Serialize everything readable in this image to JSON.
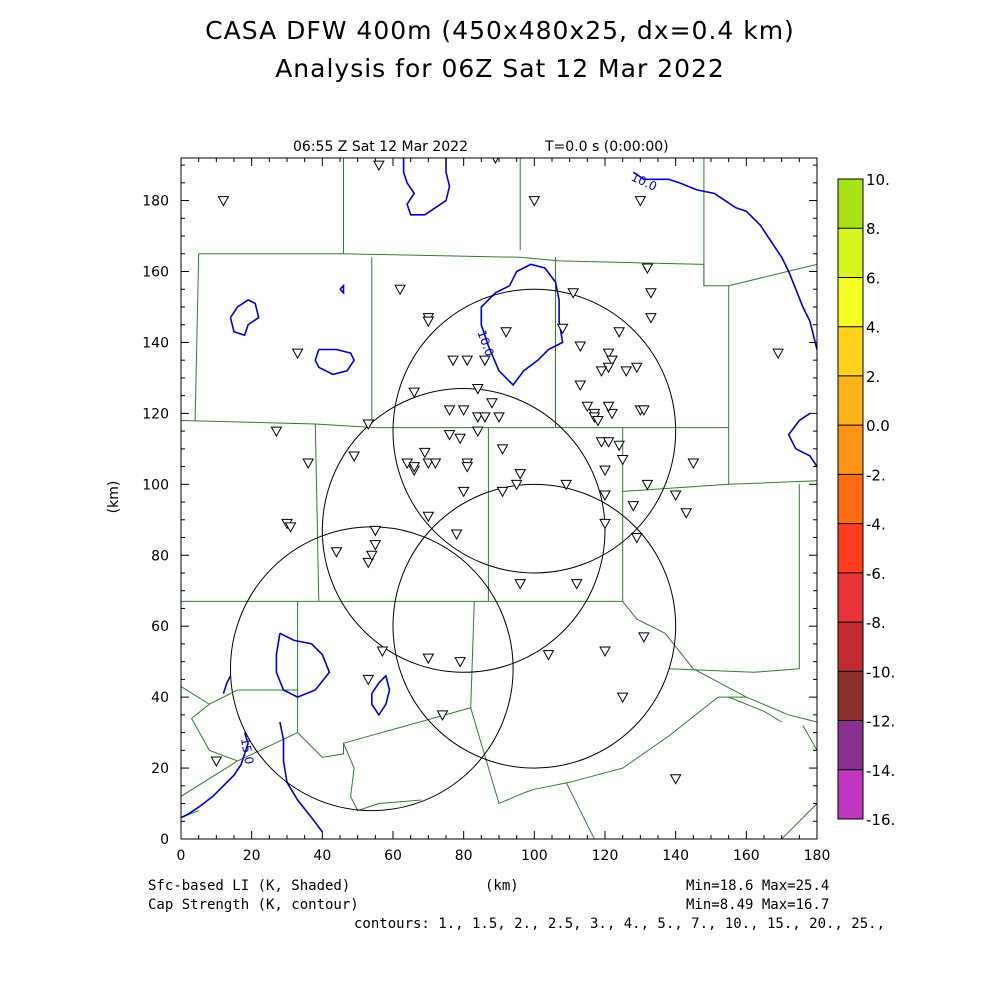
{
  "header": {
    "title_line1": "CASA DFW 400m (450x480x25, dx=0.4 km)",
    "title_line2": "Analysis for 06Z Sat 12 Mar 2022"
  },
  "plot": {
    "valid_time": "06:55 Z Sat 12 Mar 2022",
    "forecast_time": "T=0.0 s (0:00:00)",
    "x_axis_label": "(km)",
    "y_axis_label": "(km)",
    "x_ticks": [
      "0",
      "20",
      "40",
      "60",
      "80",
      "100",
      "120",
      "140",
      "160",
      "180"
    ],
    "y_ticks": [
      "0",
      "20",
      "40",
      "60",
      "80",
      "100",
      "120",
      "140",
      "160",
      "180"
    ],
    "xlim": [
      0,
      180
    ],
    "ylim": [
      0,
      192
    ],
    "contour_label_value": "10.0",
    "contour_label_value2": "15.0",
    "contour_color": "#0000cc",
    "boundary_color": "#2e7d2e"
  },
  "colorbar": {
    "labels": [
      "10.",
      "8.",
      "6.",
      "4.",
      "2.",
      "0.0",
      "-2.",
      "-4.",
      "-6.",
      "-8.",
      "-10.",
      "-12.",
      "-14.",
      "-16."
    ],
    "colors": [
      "#a8e31a",
      "#d6f51e",
      "#f5ff24",
      "#ffd21e",
      "#ffb21a",
      "#ff9416",
      "#ff6a14",
      "#ff3c1e",
      "#e8343a",
      "#c02c30",
      "#8a2f2a",
      "#8a3090",
      "#c038c0",
      "#e040e8"
    ]
  },
  "footer": {
    "shaded_field": "Sfc-based LI (K, Shaded)",
    "contour_field": "Cap Strength (K, contour)",
    "x_unit": "(km)",
    "shaded_minmax": "Min=18.6 Max=25.4",
    "contour_minmax": "Min=8.49 Max=16.7",
    "contours_list": "contours: 1., 1.5, 2., 2.5, 3., 4., 5., 7., 10., 15., 20., 25.,"
  },
  "map_data": {
    "radars": [
      {
        "x_km": 100,
        "y_km": 115,
        "range_km": 40
      },
      {
        "x_km": 80,
        "y_km": 87,
        "range_km": 40
      },
      {
        "x_km": 100,
        "y_km": 60,
        "range_km": 40
      },
      {
        "x_km": 54,
        "y_km": 48,
        "range_km": 40
      }
    ],
    "stations": [
      [
        12,
        180
      ],
      [
        56,
        190
      ],
      [
        89,
        192
      ],
      [
        100,
        180
      ],
      [
        130,
        180
      ],
      [
        62,
        155
      ],
      [
        70,
        147
      ],
      [
        70,
        146
      ],
      [
        92,
        143
      ],
      [
        108,
        144
      ],
      [
        113,
        139
      ],
      [
        121,
        137
      ],
      [
        124,
        143
      ],
      [
        132,
        161
      ],
      [
        133,
        154
      ],
      [
        133,
        147
      ],
      [
        122,
        135
      ],
      [
        121,
        133
      ],
      [
        119,
        132
      ],
      [
        126,
        132
      ],
      [
        129,
        133
      ],
      [
        111,
        154
      ],
      [
        33,
        137
      ],
      [
        66,
        126
      ],
      [
        77,
        135
      ],
      [
        81,
        135
      ],
      [
        86,
        135
      ],
      [
        84,
        127
      ],
      [
        76,
        121
      ],
      [
        80,
        121
      ],
      [
        88,
        123
      ],
      [
        84,
        119
      ],
      [
        86,
        119
      ],
      [
        90,
        119
      ],
      [
        84,
        115
      ],
      [
        113,
        128
      ],
      [
        115,
        122
      ],
      [
        117,
        120
      ],
      [
        117,
        119
      ],
      [
        118,
        118
      ],
      [
        122,
        120
      ],
      [
        121,
        122
      ],
      [
        130,
        121
      ],
      [
        131,
        121
      ],
      [
        53,
        117
      ],
      [
        27,
        115
      ],
      [
        36,
        106
      ],
      [
        49,
        108
      ],
      [
        64,
        106
      ],
      [
        66,
        104
      ],
      [
        66,
        105
      ],
      [
        69,
        109
      ],
      [
        70,
        106
      ],
      [
        72,
        106
      ],
      [
        76,
        114
      ],
      [
        79,
        113
      ],
      [
        81,
        106
      ],
      [
        81,
        105
      ],
      [
        91,
        110
      ],
      [
        96,
        103
      ],
      [
        95,
        100
      ],
      [
        91,
        98
      ],
      [
        80,
        98
      ],
      [
        109,
        100
      ],
      [
        119,
        112
      ],
      [
        121,
        112
      ],
      [
        120,
        104
      ],
      [
        124,
        111
      ],
      [
        125,
        107
      ],
      [
        132,
        100
      ],
      [
        120,
        97
      ],
      [
        128,
        94
      ],
      [
        140,
        97
      ],
      [
        143,
        92
      ],
      [
        145,
        106
      ],
      [
        30,
        89
      ],
      [
        31,
        88
      ],
      [
        44,
        81
      ],
      [
        53,
        78
      ],
      [
        54,
        80
      ],
      [
        55,
        83
      ],
      [
        55,
        87
      ],
      [
        70,
        91
      ],
      [
        78,
        86
      ],
      [
        120,
        89
      ],
      [
        129,
        85
      ],
      [
        96,
        72
      ],
      [
        112,
        72
      ],
      [
        57,
        53
      ],
      [
        70,
        51
      ],
      [
        79,
        50
      ],
      [
        53,
        45
      ],
      [
        74,
        35
      ],
      [
        104,
        52
      ],
      [
        120,
        53
      ],
      [
        131,
        57
      ],
      [
        125,
        40
      ],
      [
        10,
        22
      ],
      [
        140,
        17
      ],
      [
        169,
        137
      ]
    ],
    "cap_contours": [
      [
        [
          63,
          192
        ],
        [
          63,
          188
        ],
        [
          64,
          185
        ],
        [
          66,
          182
        ],
        [
          64,
          179
        ],
        [
          65,
          176
        ],
        [
          69,
          176
        ],
        [
          72,
          178
        ],
        [
          75,
          180
        ],
        [
          76,
          184
        ],
        [
          75,
          188
        ],
        [
          75,
          192
        ]
      ],
      [
        [
          128,
          188
        ],
        [
          131,
          186
        ],
        [
          135,
          186
        ],
        [
          138,
          186
        ],
        [
          141,
          185
        ],
        [
          146,
          183
        ],
        [
          151,
          182
        ],
        [
          154,
          180
        ],
        [
          157,
          178
        ],
        [
          160,
          177
        ],
        [
          164,
          173
        ],
        [
          166,
          170
        ],
        [
          168,
          167
        ],
        [
          170,
          164
        ],
        [
          172,
          160
        ],
        [
          174,
          155
        ],
        [
          176,
          150
        ],
        [
          178,
          146
        ],
        [
          180,
          138
        ]
      ],
      [
        [
          178,
          120
        ],
        [
          175,
          118
        ],
        [
          172,
          114
        ],
        [
          174,
          110
        ],
        [
          178,
          108
        ],
        [
          180,
          105
        ]
      ],
      [
        [
          93,
          156
        ],
        [
          95,
          160
        ],
        [
          99,
          162
        ],
        [
          103,
          161
        ],
        [
          106,
          157
        ],
        [
          107,
          152
        ],
        [
          107,
          146
        ],
        [
          108,
          140
        ],
        [
          104,
          138
        ],
        [
          101,
          135
        ],
        [
          97,
          132
        ],
        [
          94,
          128
        ],
        [
          90,
          132
        ],
        [
          87,
          139
        ],
        [
          85,
          145
        ],
        [
          85,
          150
        ],
        [
          89,
          154
        ],
        [
          93,
          156
        ]
      ],
      [
        [
          14,
          147
        ],
        [
          16,
          150
        ],
        [
          19,
          152
        ],
        [
          21,
          151
        ],
        [
          22,
          147
        ],
        [
          19,
          145
        ],
        [
          18,
          142
        ],
        [
          15,
          143
        ],
        [
          14,
          147
        ]
      ],
      [
        [
          39,
          138
        ],
        [
          44,
          138
        ],
        [
          48,
          137
        ],
        [
          49,
          135
        ],
        [
          47,
          132
        ],
        [
          43,
          131
        ],
        [
          39,
          133
        ],
        [
          38,
          135
        ],
        [
          39,
          138
        ]
      ],
      [
        [
          45,
          155
        ],
        [
          46,
          156
        ],
        [
          46,
          154
        ],
        [
          45,
          155
        ]
      ],
      [
        [
          28,
          58
        ],
        [
          32,
          56
        ],
        [
          37,
          55
        ],
        [
          40,
          52
        ],
        [
          42,
          47
        ],
        [
          38,
          42
        ],
        [
          33,
          40
        ],
        [
          29,
          42
        ],
        [
          27,
          47
        ],
        [
          27,
          52
        ],
        [
          28,
          58
        ]
      ],
      [
        [
          54,
          41
        ],
        [
          56,
          44
        ],
        [
          58,
          46
        ],
        [
          59,
          42
        ],
        [
          58,
          38
        ],
        [
          56,
          35
        ],
        [
          54,
          38
        ],
        [
          54,
          41
        ]
      ],
      [
        [
          12,
          41
        ],
        [
          13,
          44
        ],
        [
          14,
          46
        ]
      ],
      [
        [
          18,
          30
        ],
        [
          19,
          27
        ],
        [
          18,
          24
        ],
        [
          17,
          21
        ],
        [
          15,
          18
        ],
        [
          12,
          15
        ],
        [
          9,
          12
        ],
        [
          5,
          9
        ],
        [
          2,
          7
        ],
        [
          0,
          6
        ]
      ],
      [
        [
          28,
          33
        ],
        [
          29,
          28
        ],
        [
          29,
          22
        ],
        [
          30,
          16
        ],
        [
          33,
          11
        ],
        [
          37,
          6
        ],
        [
          40,
          2
        ]
      ]
    ],
    "county_lines": [
      [
        [
          46,
          192
        ],
        [
          46,
          165
        ]
      ],
      [
        [
          96,
          192
        ],
        [
          96,
          166
        ]
      ],
      [
        [
          148,
          192
        ],
        [
          148,
          156
        ]
      ],
      [
        [
          5,
          165
        ],
        [
          46,
          165
        ],
        [
          96,
          164
        ],
        [
          107,
          163
        ],
        [
          148,
          162
        ]
      ],
      [
        [
          5,
          165
        ],
        [
          4,
          118
        ]
      ],
      [
        [
          0,
          118
        ],
        [
          38,
          117
        ],
        [
          55,
          116
        ],
        [
          106,
          116
        ]
      ],
      [
        [
          54,
          164
        ],
        [
          54,
          117
        ]
      ],
      [
        [
          106,
          164
        ],
        [
          106,
          116
        ]
      ],
      [
        [
          148,
          162
        ],
        [
          148,
          156
        ],
        [
          155,
          156
        ],
        [
          180,
          162
        ]
      ],
      [
        [
          155,
          156
        ],
        [
          155,
          100
        ]
      ],
      [
        [
          106,
          116
        ],
        [
          125,
          116
        ],
        [
          155,
          116
        ]
      ],
      [
        [
          125,
          116
        ],
        [
          125,
          67
        ]
      ],
      [
        [
          38,
          117
        ],
        [
          39,
          67
        ]
      ],
      [
        [
          87,
          116
        ],
        [
          87,
          67
        ]
      ],
      [
        [
          125,
          98
        ],
        [
          155,
          100
        ],
        [
          180,
          101
        ]
      ],
      [
        [
          175,
          100
        ],
        [
          175,
          48
        ],
        [
          162,
          47
        ],
        [
          138,
          48
        ]
      ],
      [
        [
          0,
          67
        ],
        [
          39,
          67
        ],
        [
          87,
          67
        ],
        [
          125,
          67
        ]
      ],
      [
        [
          125,
          67
        ],
        [
          129,
          62
        ],
        [
          137,
          58
        ],
        [
          145,
          48
        ],
        [
          160,
          40
        ],
        [
          172,
          35
        ],
        [
          180,
          33
        ]
      ],
      [
        [
          33,
          67
        ],
        [
          33,
          30
        ]
      ],
      [
        [
          0,
          43
        ],
        [
          8,
          38
        ],
        [
          16,
          42
        ],
        [
          33,
          42
        ]
      ],
      [
        [
          3,
          34
        ],
        [
          8,
          38
        ]
      ],
      [
        [
          3,
          34
        ],
        [
          8,
          25
        ],
        [
          16,
          22
        ],
        [
          33,
          30
        ],
        [
          40,
          23
        ],
        [
          46,
          24
        ],
        [
          46,
          27
        ],
        [
          82,
          37
        ],
        [
          90,
          10
        ],
        [
          97,
          13
        ]
      ],
      [
        [
          83,
          67
        ],
        [
          82,
          37
        ]
      ],
      [
        [
          0,
          12
        ],
        [
          16,
          22
        ]
      ],
      [
        [
          46,
          27
        ],
        [
          49,
          20
        ],
        [
          48,
          12
        ],
        [
          50,
          8
        ],
        [
          56,
          10
        ],
        [
          68,
          11
        ]
      ],
      [
        [
          97,
          13
        ],
        [
          100,
          14
        ],
        [
          110,
          16
        ],
        [
          125,
          20
        ],
        [
          138,
          29
        ],
        [
          152,
          40
        ],
        [
          160,
          40
        ]
      ],
      [
        [
          0,
          6
        ],
        [
          5,
          8
        ]
      ],
      [
        [
          109,
          16
        ],
        [
          117,
          0
        ]
      ],
      [
        [
          170,
          0
        ],
        [
          180,
          10
        ]
      ],
      [
        [
          176,
          32
        ],
        [
          180,
          25
        ]
      ],
      [
        [
          155,
          40
        ],
        [
          165,
          36
        ],
        [
          170,
          33
        ]
      ]
    ]
  }
}
